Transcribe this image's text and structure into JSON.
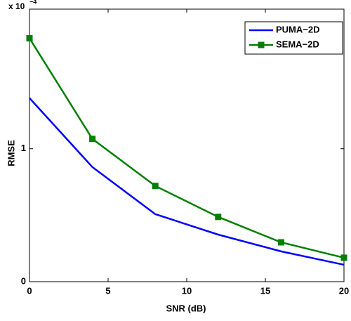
{
  "chart_data": {
    "type": "line",
    "x_label": "SNR (dB)",
    "y_label": "RMSE",
    "y_multiplier": "x 10",
    "y_exponent": "−4",
    "x": [
      0,
      4,
      8,
      12,
      16,
      20
    ],
    "series": [
      {
        "name": "PUMA−2D",
        "color": "#0000ff",
        "marker": "none",
        "values": [
          1.381,
          0.862,
          0.508,
          0.354,
          0.228,
          0.127
        ]
      },
      {
        "name": "SEMA−2D",
        "color": "#008000",
        "marker": "square",
        "values": [
          1.831,
          1.074,
          0.72,
          0.487,
          0.296,
          0.18
        ]
      }
    ],
    "xlim": [
      0,
      20
    ],
    "xticks": [
      0,
      5,
      10,
      15,
      20
    ],
    "ylim": [
      0,
      2.05
    ],
    "yticks": [
      0,
      1
    ],
    "legend": "top-right",
    "grid": false
  }
}
